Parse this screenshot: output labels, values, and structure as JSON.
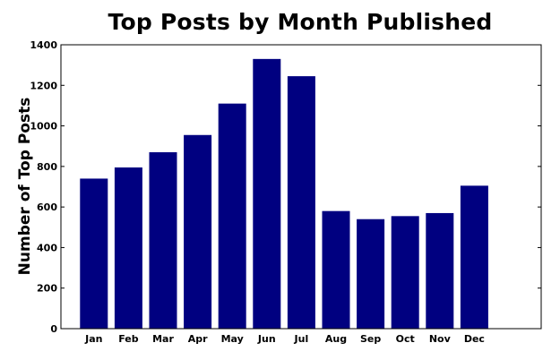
{
  "chart_data": {
    "type": "bar",
    "title": "Top Posts by Month Published",
    "xlabel": "",
    "ylabel": "Number of Top Posts",
    "categories": [
      "Jan",
      "Feb",
      "Mar",
      "Apr",
      "May",
      "Jun",
      "Jul",
      "Aug",
      "Sep",
      "Oct",
      "Nov",
      "Dec"
    ],
    "values": [
      740,
      795,
      870,
      955,
      1110,
      1330,
      1245,
      580,
      540,
      555,
      570,
      705
    ],
    "ylim": [
      0,
      1400
    ],
    "yticks": [
      0,
      200,
      400,
      600,
      800,
      1000,
      1200,
      1400
    ],
    "grid": false,
    "legend": "none",
    "bar_color": "#000080"
  }
}
